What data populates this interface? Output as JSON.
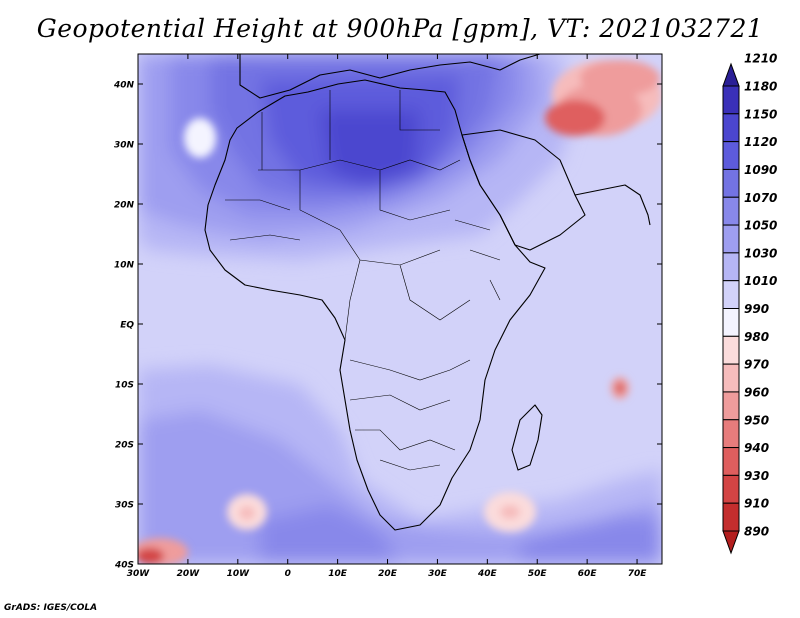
{
  "title": "Geopotential Height at 900hPa [gpm], VT: 2021032721",
  "footer": "GrADS: IGES/COLA",
  "map": {
    "lon_range": [
      -30,
      75
    ],
    "lat_range": [
      -40,
      45
    ],
    "lat_labels": [
      "40N",
      "30N",
      "20N",
      "10N",
      "EQ",
      "10S",
      "20S",
      "30S",
      "40S"
    ],
    "lat_values": [
      40,
      30,
      20,
      10,
      0,
      -10,
      -20,
      -30,
      -40
    ],
    "lon_labels": [
      "30W",
      "20W",
      "10W",
      "0",
      "10E",
      "20E",
      "30E",
      "40E",
      "50E",
      "60E",
      "70E"
    ],
    "lon_values": [
      -30,
      -20,
      -10,
      0,
      10,
      20,
      30,
      40,
      50,
      60,
      70
    ]
  },
  "colorbar": {
    "labels": [
      "1210",
      "1180",
      "1150",
      "1120",
      "1090",
      "1070",
      "1050",
      "1030",
      "1010",
      "990",
      "980",
      "970",
      "960",
      "950",
      "940",
      "930",
      "910",
      "890"
    ],
    "colors": [
      "#2a1f96",
      "#3a30b8",
      "#4b46cf",
      "#5d5bdc",
      "#7373e3",
      "#8888ea",
      "#9e9ef0",
      "#b6b6f5",
      "#d2d2f9",
      "#f4f4ff",
      "#fbdcdc",
      "#f6bcbc",
      "#ef9c9c",
      "#e77c7c",
      "#df5e5e",
      "#d34444",
      "#c42e2e",
      "#b31e1e"
    ]
  }
}
